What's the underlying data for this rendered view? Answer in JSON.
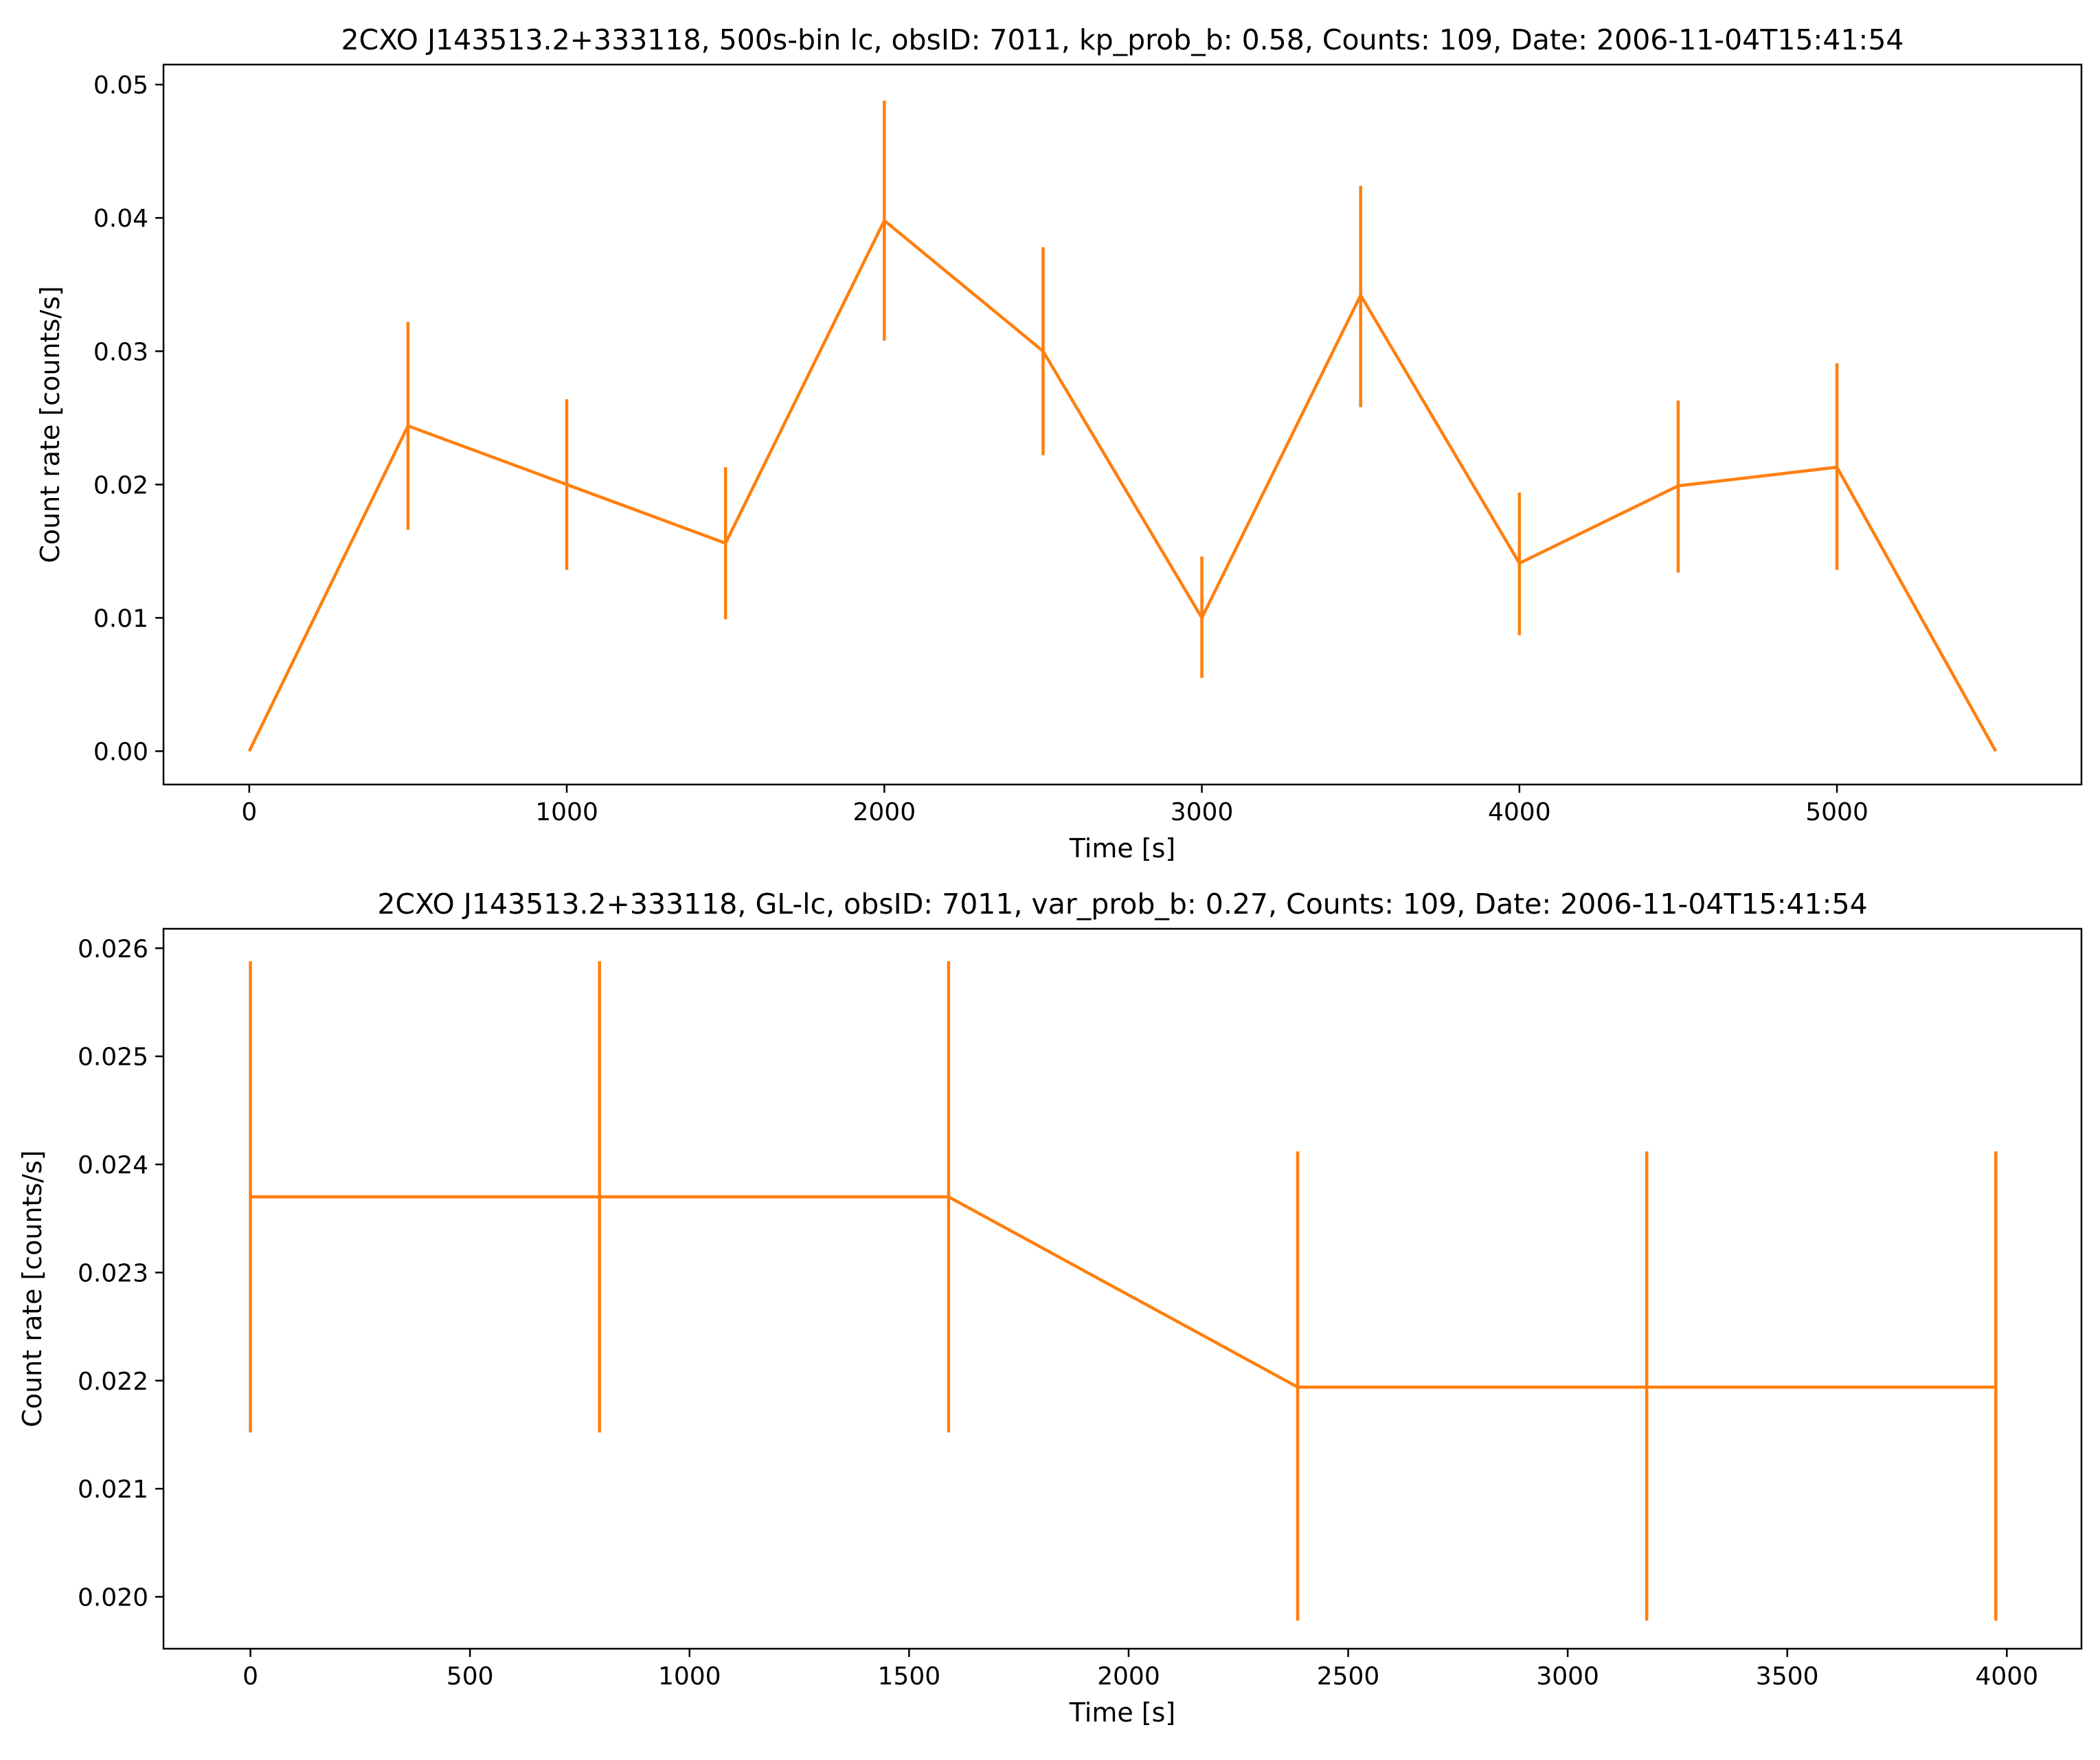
{
  "chart_data": [
    {
      "type": "line",
      "title": "2CXO J143513.2+333118, 500s-bin lc, obsID: 7011, kp_prob_b: 0.58, Counts: 109, Date: 2006-11-04T15:41:54",
      "xlabel": "Time [s]",
      "ylabel": "Count rate [counts/s]",
      "xlim": [
        -270,
        5770
      ],
      "ylim": [
        -0.0025,
        0.0515
      ],
      "xticks": [
        0,
        1000,
        2000,
        3000,
        4000,
        5000
      ],
      "yticks": [
        0.0,
        0.01,
        0.02,
        0.03,
        0.04,
        0.05
      ],
      "xtick_labels": [
        "0",
        "1000",
        "2000",
        "3000",
        "4000",
        "5000"
      ],
      "ytick_labels": [
        "0.00",
        "0.01",
        "0.02",
        "0.03",
        "0.04",
        "0.05"
      ],
      "grid": false,
      "color": "#ff7f0e",
      "series": [
        {
          "x": [
            0,
            500,
            1000,
            1500,
            2000,
            2500,
            3000,
            3500,
            4000,
            4500,
            5000,
            5500
          ],
          "y": [
            0.0,
            0.0244,
            0.02,
            0.0156,
            0.0398,
            0.03,
            0.01,
            0.0342,
            0.0141,
            0.0199,
            0.0213,
            0.0
          ],
          "yerr_low": [
            null,
            0.0166,
            0.0136,
            0.0099,
            0.0308,
            0.0222,
            0.0055,
            0.0258,
            0.0087,
            0.0134,
            0.0136,
            null
          ],
          "yerr_high": [
            null,
            0.0322,
            0.0264,
            0.0213,
            0.0488,
            0.0378,
            0.0146,
            0.0424,
            0.0194,
            0.0263,
            0.0291,
            null
          ]
        }
      ]
    },
    {
      "type": "line",
      "title": "2CXO J143513.2+333118, GL-lc, obsID: 7011, var_prob_b: 0.27, Counts: 109, Date: 2006-11-04T15:41:54",
      "xlabel": "Time [s]",
      "ylabel": "Count rate [counts/s]",
      "xlim": [
        -198,
        4170
      ],
      "ylim": [
        0.01952,
        0.02618
      ],
      "xticks": [
        0,
        500,
        1000,
        1500,
        2000,
        2500,
        3000,
        3500,
        4000
      ],
      "yticks": [
        0.02,
        0.021,
        0.022,
        0.023,
        0.024,
        0.025,
        0.026
      ],
      "xtick_labels": [
        "0",
        "500",
        "1000",
        "1500",
        "2000",
        "2500",
        "3000",
        "3500",
        "4000"
      ],
      "ytick_labels": [
        "0.020",
        "0.021",
        "0.022",
        "0.023",
        "0.024",
        "0.025",
        "0.026"
      ],
      "grid": false,
      "color": "#ff7f0e",
      "series": [
        {
          "x": [
            0,
            795,
            1590,
            2385,
            3180,
            3975
          ],
          "y": [
            0.0237,
            0.0237,
            0.0237,
            0.02194,
            0.02194,
            0.02194
          ],
          "yerr_low": [
            0.02152,
            0.02152,
            0.02152,
            0.01978,
            0.01978,
            0.01978
          ],
          "yerr_high": [
            0.02588,
            0.02588,
            0.02588,
            0.02412,
            0.02412,
            0.02412
          ]
        }
      ]
    }
  ]
}
